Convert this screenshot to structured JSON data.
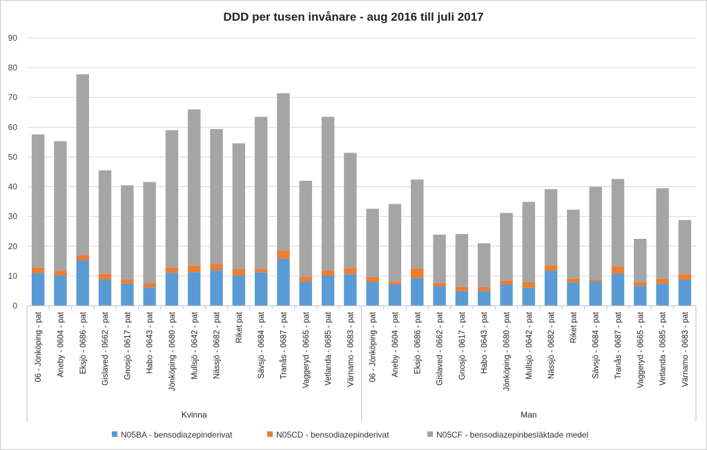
{
  "chart_data": {
    "type": "bar",
    "stacked": true,
    "title": "DDD per tusen invånare - aug 2016 till juli 2017",
    "ylim": [
      0,
      90
    ],
    "yticks": [
      0,
      10,
      20,
      30,
      40,
      50,
      60,
      70,
      80,
      90
    ],
    "grid": true,
    "legend_position": "bottom",
    "groups": [
      {
        "name": "Kvinna",
        "start": 0,
        "count": 15
      },
      {
        "name": "Man",
        "start": 15,
        "count": 15
      }
    ],
    "categories": [
      "06 - Jönköping - pat",
      "Aneby - 0604 - pat",
      "Eksjö - 0686 - pat",
      "Gislaved - 0662 - pat",
      "Gnosjö - 0617 - pat",
      "Habo - 0643 - pat",
      "Jönköping - 0680 - pat",
      "Mullsjö - 0642 - pat",
      "Nässjö - 0682 - pat",
      "Riket pat",
      "Sävsjö - 0684 - pat",
      "Tranås - 0687 - pat",
      "Vaggeryd - 0665 - pat",
      "Vetlanda - 0685 - pat",
      "Värnamo - 0683 - pat",
      "06 - Jönköping - pat",
      "Aneby - 0604 - pat",
      "Eksjö - 0686 - pat",
      "Gislaved - 0662 - pat",
      "Gnosjö - 0617 - pat",
      "Habo - 0643 - pat",
      "Jönköping - 0680 - pat",
      "Mullsjö - 0642 - pat",
      "Nässjö - 0682 - pat",
      "Riket pat",
      "Sävsjö - 0684 - pat",
      "Tranås - 0687 - pat",
      "Vaggeryd - 0665 - pat",
      "Vetlanda - 0685 - pat",
      "Värnamo - 0683 - pat"
    ],
    "series": [
      {
        "name": "N05BA - bensodiazepinderivat",
        "color": "#5b9bd5",
        "values": [
          11.0,
          10.2,
          15.3,
          8.8,
          7.5,
          6.2,
          11.0,
          11.3,
          12.0,
          10.1,
          11.2,
          15.8,
          8.1,
          10.1,
          10.6,
          8.0,
          7.2,
          9.3,
          6.5,
          4.9,
          5.0,
          7.2,
          6.1,
          11.8,
          7.8,
          8.1,
          10.8,
          6.7,
          7.4,
          8.7
        ]
      },
      {
        "name": "N05CD - bensodiazepinderivat",
        "color": "#ed7d31",
        "values": [
          1.8,
          1.6,
          1.7,
          1.9,
          1.3,
          1.4,
          1.8,
          2.2,
          2.1,
          2.2,
          1.1,
          2.8,
          1.6,
          1.8,
          2.1,
          1.6,
          0.9,
          3.1,
          1.1,
          1.4,
          1.3,
          1.3,
          1.8,
          1.8,
          1.3,
          0.6,
          2.4,
          1.2,
          1.7,
          1.9
        ]
      },
      {
        "name": "N05CF - bensodiazepinbesläktade medel",
        "color": "#a5a5a5",
        "values": [
          44.8,
          43.5,
          60.8,
          34.8,
          31.7,
          34.0,
          46.2,
          52.5,
          45.3,
          42.3,
          51.2,
          52.8,
          32.3,
          51.6,
          38.7,
          23.0,
          26.1,
          30.0,
          16.3,
          17.8,
          14.7,
          22.7,
          27.0,
          25.6,
          23.2,
          31.3,
          29.4,
          14.6,
          30.4,
          18.2
        ]
      }
    ]
  }
}
